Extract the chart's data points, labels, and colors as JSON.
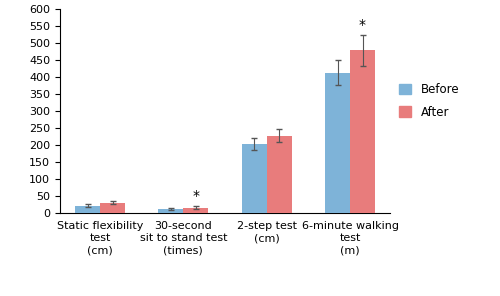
{
  "categories": [
    "Static flexibility\ntest\n(cm)",
    "30-second\nsit to stand test\n(times)",
    "2-step test\n(cm)",
    "6-minute walking\ntest\n(m)"
  ],
  "before_values": [
    22,
    13,
    203,
    413
  ],
  "after_values": [
    31,
    16,
    228,
    478
  ],
  "before_errors": [
    5,
    3,
    18,
    38
  ],
  "after_errors": [
    5,
    4,
    20,
    45
  ],
  "before_color": "#7EB3D8",
  "after_color": "#E87C7C",
  "ylim": [
    0,
    600
  ],
  "yticks": [
    0,
    50,
    100,
    150,
    200,
    250,
    300,
    350,
    400,
    450,
    500,
    550,
    600
  ],
  "bar_width": 0.3,
  "significance": [
    false,
    true,
    false,
    true
  ],
  "legend_labels": [
    "Before",
    "After"
  ],
  "background_color": "#ffffff",
  "tick_fontsize": 8,
  "label_fontsize": 8
}
